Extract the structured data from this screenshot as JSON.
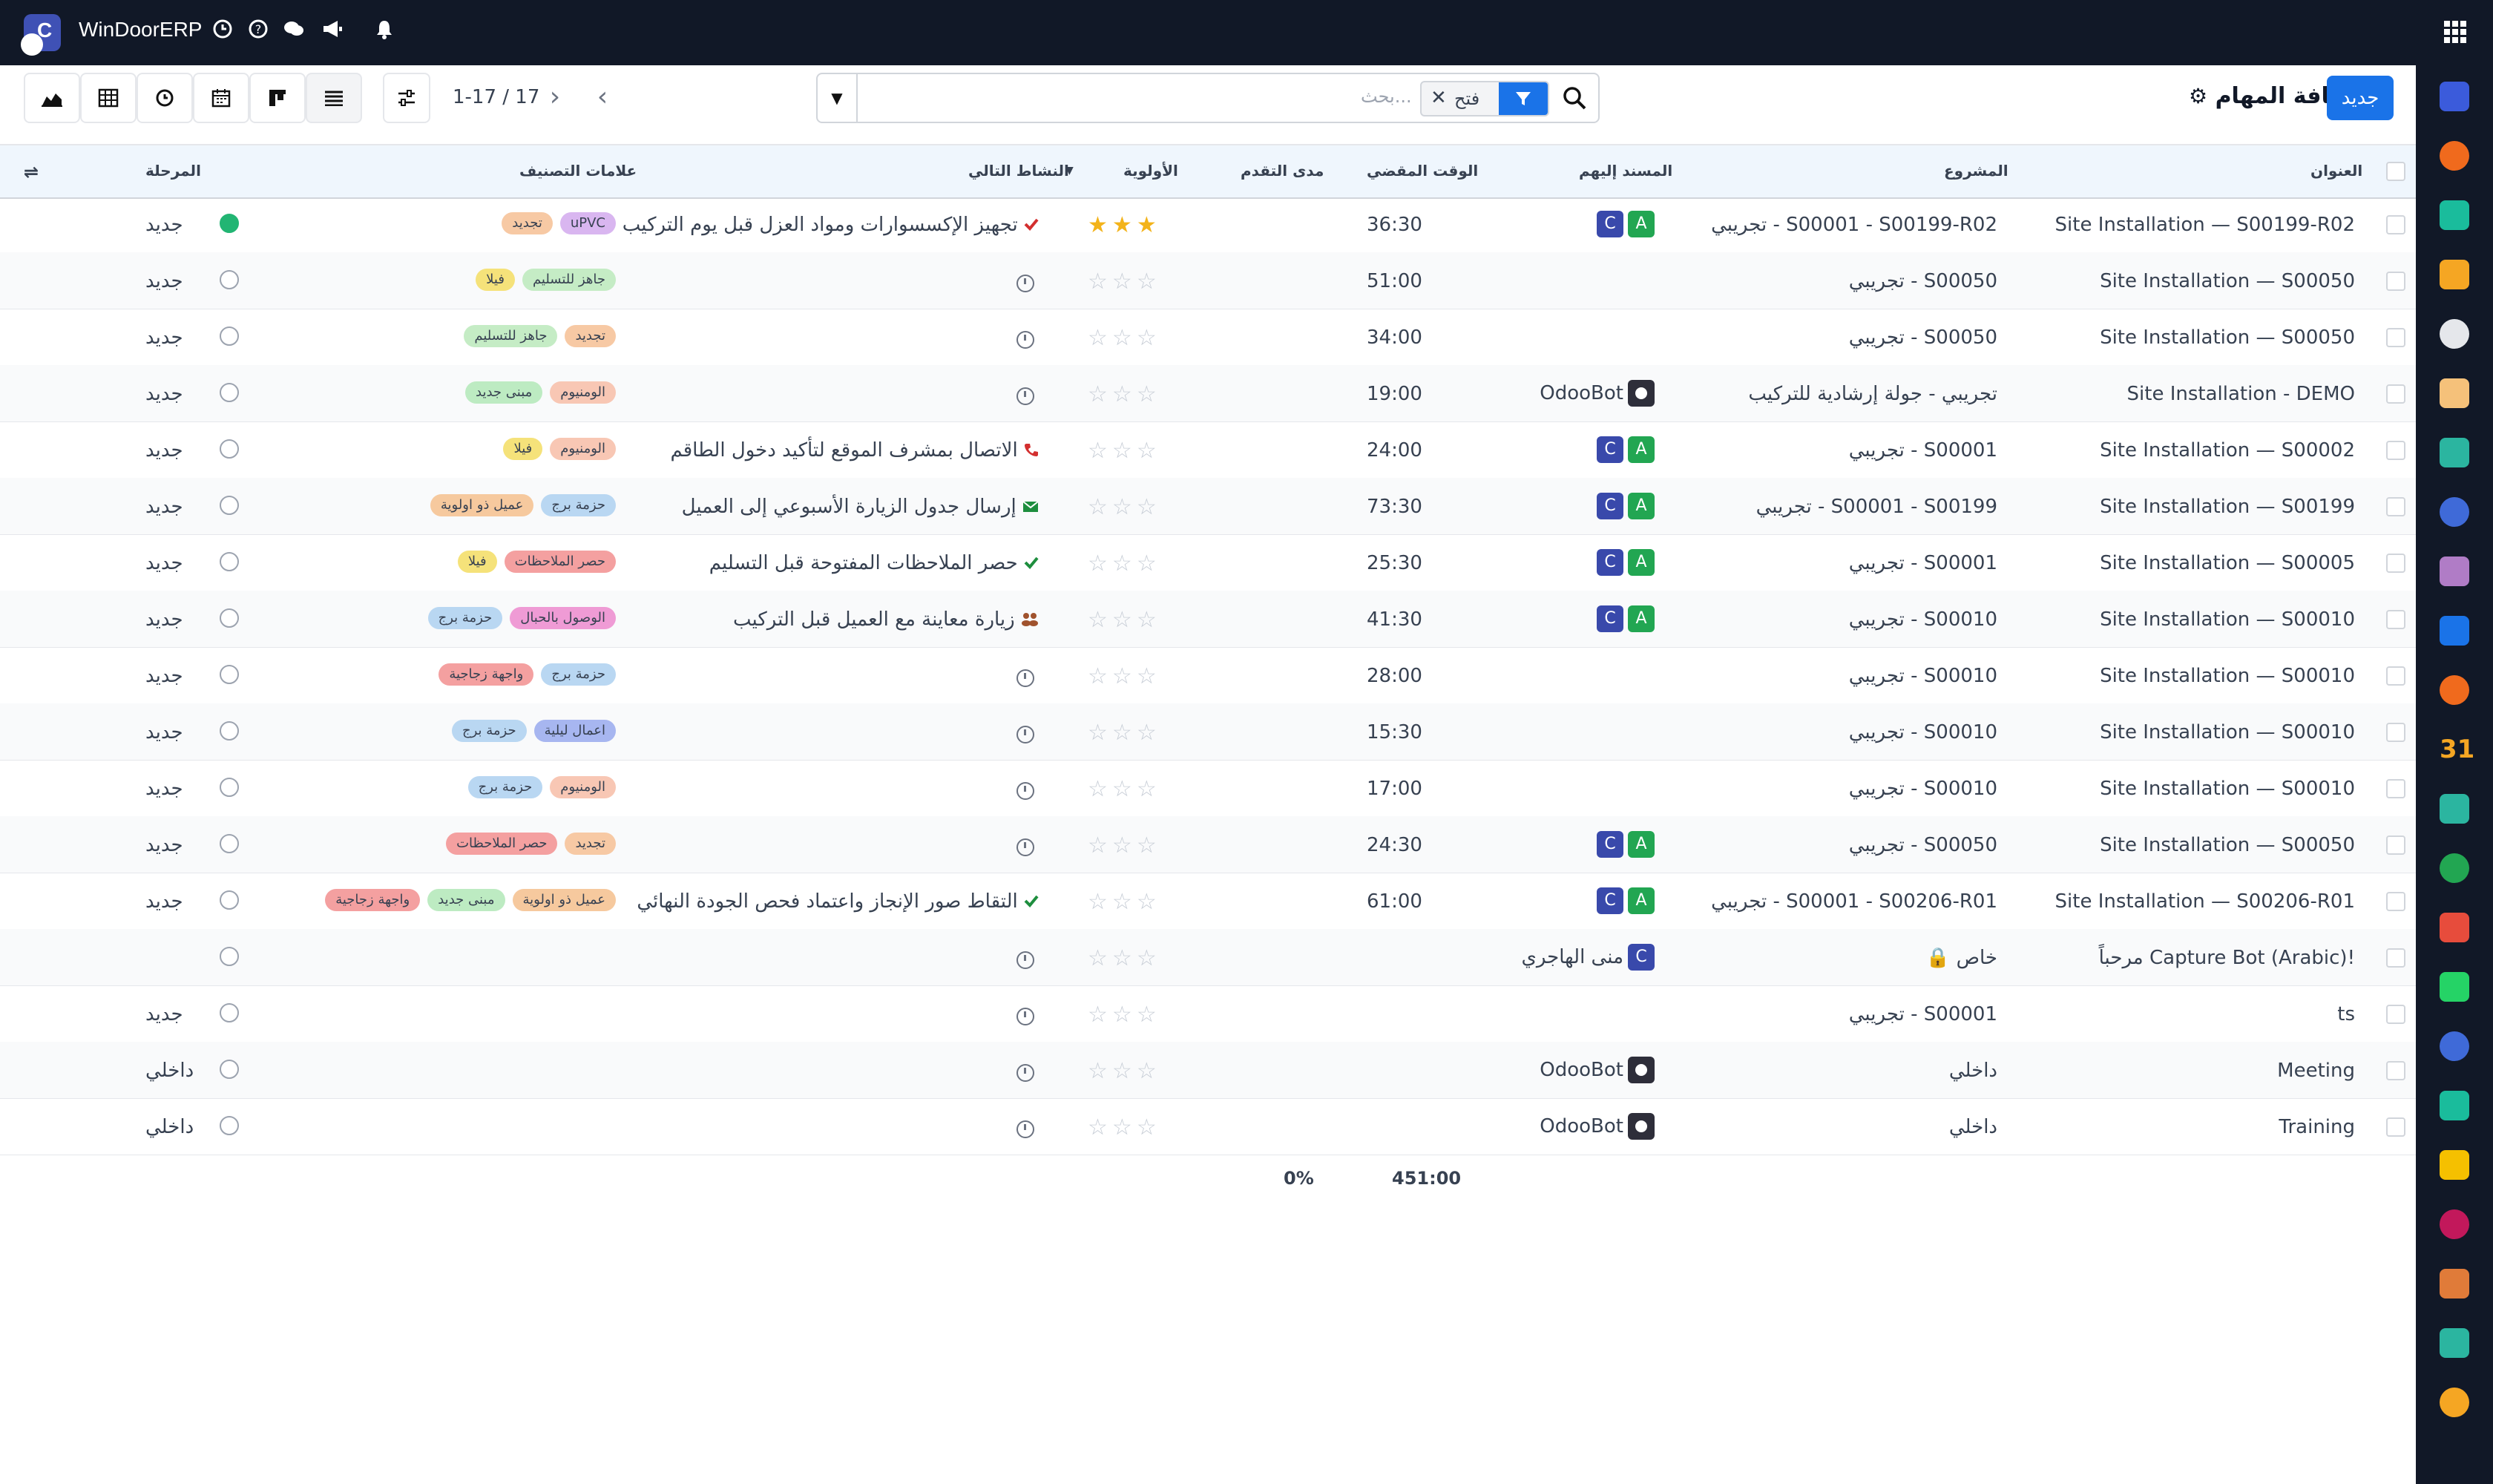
{
  "app": {
    "title": "WinDoorERP"
  },
  "topbar": {
    "icons": [
      "clock-icon",
      "help-icon",
      "chat-icon",
      "megaphone-icon",
      "bell-icon",
      "apps-grid-icon"
    ]
  },
  "control": {
    "new_label": "جديد",
    "breadcrumb": "كافة المهام",
    "search_placeholder": "بحث...",
    "facet_value": "فتح",
    "pager": "1-17 / 17",
    "view_icons": [
      "graph-view-icon",
      "pivot-view-icon",
      "activity-view-icon",
      "calendar-view-icon",
      "kanban-view-icon",
      "list-view-icon",
      "settings-icon"
    ]
  },
  "columns": {
    "title": "العنوان",
    "project": "المشروع",
    "assignees": "المسند إليهم",
    "time_spent": "الوقت المقضي",
    "progress": "مدى التقدم",
    "priority": "الأولوية",
    "next_activity": "النشاط التالي",
    "tags": "علامات التصنيف",
    "stage": "المرحلة"
  },
  "tag_colors": {
    "uPVC": "#d9b6f0",
    "تجديد": "#f7c9a4",
    "جاهز للتسليم": "#c5ecc5",
    "فيلا": "#f5e27a",
    "مبنى جديد": "#bdebc2",
    "الومنيوم": "#f8c7b4",
    "عميل ذو اولوية": "#f6c99e",
    "حزمة برج": "#b9d7f2",
    "حصر الملاحظات": "#f4a0a0",
    "الوصول بالحبال": "#ef9bd5",
    "واجهة زجاجية": "#f4a0a0",
    "اعمال ليلية": "#a7b6f0"
  },
  "rows": [
    {
      "title": "Site Installation — S00199-R02",
      "project": "تجريبي - S00001 - S00199-R02",
      "assignees": [
        "C",
        "A"
      ],
      "assignee_name": "",
      "time": "36:30",
      "stars": 3,
      "activity": "تجهيز الإكسسوارات ومواد العزل قبل يوم التركيب",
      "activity_icon": "check-icon",
      "activity_color": "#d32f2f",
      "tags": [
        "uPVC",
        "تجديد"
      ],
      "stage": "جديد",
      "status": "green"
    },
    {
      "title": "Site Installation — S00050",
      "project": "تجريبي - S00050",
      "assignees": [],
      "assignee_name": "",
      "time": "51:00",
      "stars": 0,
      "activity": "",
      "activity_icon": "clock-icon",
      "activity_color": "#6b7280",
      "tags": [
        "جاهز للتسليم",
        "فيلا"
      ],
      "stage": "جديد",
      "status": "grey"
    },
    {
      "title": "Site Installation — S00050",
      "project": "تجريبي - S00050",
      "assignees": [],
      "assignee_name": "",
      "time": "34:00",
      "stars": 0,
      "activity": "",
      "activity_icon": "clock-icon",
      "activity_color": "#6b7280",
      "tags": [
        "تجديد",
        "جاهز للتسليم"
      ],
      "stage": "جديد",
      "status": "grey"
    },
    {
      "title": "Site Installation - DEMO",
      "project": "تجريبي - جولة إرشادية للتركيب",
      "assignees": [
        "bot"
      ],
      "assignee_name": "OdooBot",
      "time": "19:00",
      "stars": 0,
      "activity": "",
      "activity_icon": "clock-icon",
      "activity_color": "#6b7280",
      "tags": [
        "الومنيوم",
        "مبنى جديد"
      ],
      "stage": "جديد",
      "status": "grey"
    },
    {
      "title": "Site Installation — S00002",
      "project": "تجريبي - S00001",
      "assignees": [
        "C",
        "A"
      ],
      "assignee_name": "",
      "time": "24:00",
      "stars": 0,
      "activity": "الاتصال بمشرف الموقع لتأكيد دخول الطاقم",
      "activity_icon": "phone-icon",
      "activity_color": "#d32f2f",
      "tags": [
        "الومنيوم",
        "فيلا"
      ],
      "stage": "جديد",
      "status": "grey"
    },
    {
      "title": "Site Installation — S00199",
      "project": "تجريبي - S00001 - S00199",
      "assignees": [
        "C",
        "A"
      ],
      "assignee_name": "",
      "time": "73:30",
      "stars": 0,
      "activity": "إرسال جدول الزيارة الأسبوعي إلى العميل",
      "activity_icon": "envelope-icon",
      "activity_color": "#1e8e3e",
      "tags": [
        "حزمة برج",
        "عميل ذو اولوية"
      ],
      "stage": "جديد",
      "status": "grey"
    },
    {
      "title": "Site Installation — S00005",
      "project": "تجريبي - S00001",
      "assignees": [
        "C",
        "A"
      ],
      "assignee_name": "",
      "time": "25:30",
      "stars": 0,
      "activity": "حصر الملاحظات المفتوحة قبل التسليم",
      "activity_icon": "check-icon",
      "activity_color": "#1e8e3e",
      "tags": [
        "حصر الملاحظات",
        "فيلا"
      ],
      "stage": "جديد",
      "status": "grey"
    },
    {
      "title": "Site Installation — S00010",
      "project": "تجريبي - S00010",
      "assignees": [
        "C",
        "A"
      ],
      "assignee_name": "",
      "time": "41:30",
      "stars": 0,
      "activity": "زيارة معاينة مع العميل قبل التركيب",
      "activity_icon": "users-icon",
      "activity_color": "#a0522d",
      "tags": [
        "الوصول بالحبال",
        "حزمة برج"
      ],
      "stage": "جديد",
      "status": "grey"
    },
    {
      "title": "Site Installation — S00010",
      "project": "تجريبي - S00010",
      "assignees": [],
      "assignee_name": "",
      "time": "28:00",
      "stars": 0,
      "activity": "",
      "activity_icon": "clock-icon",
      "activity_color": "#6b7280",
      "tags": [
        "حزمة برج",
        "واجهة زجاجية"
      ],
      "stage": "جديد",
      "status": "grey"
    },
    {
      "title": "Site Installation — S00010",
      "project": "تجريبي - S00010",
      "assignees": [],
      "assignee_name": "",
      "time": "15:30",
      "stars": 0,
      "activity": "",
      "activity_icon": "clock-icon",
      "activity_color": "#6b7280",
      "tags": [
        "اعمال ليلية",
        "حزمة برج"
      ],
      "stage": "جديد",
      "status": "grey"
    },
    {
      "title": "Site Installation — S00010",
      "project": "تجريبي - S00010",
      "assignees": [],
      "assignee_name": "",
      "time": "17:00",
      "stars": 0,
      "activity": "",
      "activity_icon": "clock-icon",
      "activity_color": "#6b7280",
      "tags": [
        "الومنيوم",
        "حزمة برج"
      ],
      "stage": "جديد",
      "status": "grey"
    },
    {
      "title": "Site Installation — S00050",
      "project": "تجريبي - S00050",
      "assignees": [
        "C",
        "A"
      ],
      "assignee_name": "",
      "time": "24:30",
      "stars": 0,
      "activity": "",
      "activity_icon": "clock-icon",
      "activity_color": "#6b7280",
      "tags": [
        "تجديد",
        "حصر الملاحظات"
      ],
      "stage": "جديد",
      "status": "grey"
    },
    {
      "title": "Site Installation — S00206-R01",
      "project": "تجريبي - S00001 - S00206-R01",
      "assignees": [
        "C",
        "A"
      ],
      "assignee_name": "",
      "time": "61:00",
      "stars": 0,
      "activity": "التقاط صور الإنجاز واعتماد فحص الجودة النهائي",
      "activity_icon": "check-icon",
      "activity_color": "#1e8e3e",
      "tags": [
        "عميل ذو اولوية",
        "مبنى جديد",
        "واجهة زجاجية"
      ],
      "stage": "جديد",
      "status": "grey"
    },
    {
      "title": "مرحباً Capture Bot (Arabic)!",
      "project": "خاص",
      "project_lock": true,
      "assignees": [
        "C"
      ],
      "assignee_name": "منى الهاجري",
      "time": "",
      "stars": 0,
      "activity": "",
      "activity_icon": "clock-icon",
      "activity_color": "#6b7280",
      "tags": [],
      "stage": "",
      "status": "grey"
    },
    {
      "title": "ts",
      "project": "تجريبي - S00001",
      "assignees": [],
      "assignee_name": "",
      "time": "",
      "stars": 0,
      "activity": "",
      "activity_icon": "clock-icon",
      "activity_color": "#6b7280",
      "tags": [],
      "stage": "جديد",
      "status": "grey"
    },
    {
      "title": "Meeting",
      "project": "داخلي",
      "assignees": [
        "bot"
      ],
      "assignee_name": "OdooBot",
      "time": "",
      "stars": 0,
      "activity": "",
      "activity_icon": "clock-icon",
      "activity_color": "#6b7280",
      "tags": [],
      "stage": "داخلي",
      "status": "grey"
    },
    {
      "title": "Training",
      "project": "داخلي",
      "assignees": [
        "bot"
      ],
      "assignee_name": "OdooBot",
      "time": "",
      "stars": 0,
      "activity": "",
      "activity_icon": "clock-icon",
      "activity_color": "#6b7280",
      "tags": [],
      "stage": "داخلي",
      "status": "grey"
    }
  ],
  "totals": {
    "time": "451:00",
    "progress": "0%"
  },
  "sidebar": {
    "apps": [
      {
        "name": "mail-app-icon",
        "color": "#3b5bdb"
      },
      {
        "name": "discuss-app-icon",
        "color": "#f06a1d"
      },
      {
        "name": "sales-app-icon",
        "color": "#1abc9c"
      },
      {
        "name": "reporting-app-icon",
        "color": "#f5a623"
      },
      {
        "name": "inventory-app-icon",
        "color": "#e5e7eb"
      },
      {
        "name": "contacts-app-icon",
        "color": "#f5c17a"
      },
      {
        "name": "tasks-app-icon",
        "color": "#2bb5a0"
      },
      {
        "name": "knowledge-app-icon",
        "color": "#3f6ad8"
      },
      {
        "name": "products-app-icon",
        "color": "#b07cc6"
      },
      {
        "name": "invoicing-app-icon",
        "color": "#1a73e8"
      },
      {
        "name": "team-app-icon",
        "color": "#f06a1d"
      },
      {
        "name": "calendar-app-icon",
        "color": "#f5a623"
      },
      {
        "name": "sign-app-icon",
        "color": "#2bb5a0"
      },
      {
        "name": "employees-app-icon",
        "color": "#22a652"
      },
      {
        "name": "dashboard-app-icon",
        "color": "#e74c3c"
      },
      {
        "name": "whatsapp-app-icon",
        "color": "#25d366"
      },
      {
        "name": "timesheet-app-icon",
        "color": "#3f6ad8"
      },
      {
        "name": "website-app-icon",
        "color": "#1abc9c"
      },
      {
        "name": "telegram-app-icon",
        "color": "#f5c000"
      },
      {
        "name": "documents-app-icon",
        "color": "#c2185b"
      },
      {
        "name": "field-service-app-icon",
        "color": "#e07b39"
      },
      {
        "name": "planning-app-icon",
        "color": "#2bb5a0"
      },
      {
        "name": "settings-app-icon",
        "color": "#f5a623"
      }
    ],
    "calendar_number": "31"
  }
}
